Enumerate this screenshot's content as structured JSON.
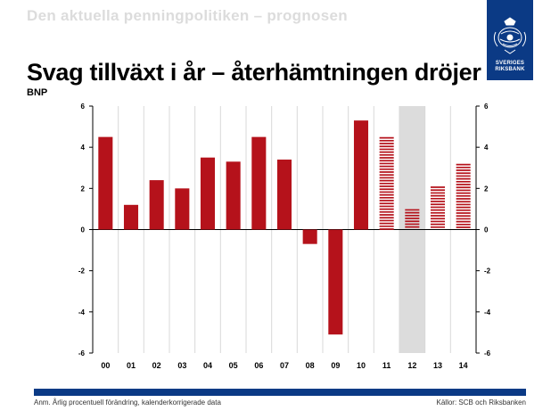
{
  "header": {
    "section_title": "Den aktuella penningpolitiken – prognosen",
    "main_title": "Svag tillväxt i år – återhämtningen dröjer",
    "subtitle": "BNP"
  },
  "logo": {
    "line1": "SVERIGES",
    "line2": "RIKSBANK",
    "color": "#0b3a85"
  },
  "footer": {
    "note": "Anm. Årlig procentuell förändring, kalenderkorrigerade data",
    "source": "Källor: SCB och Riksbanken"
  },
  "colors": {
    "bar": "#b5121b",
    "forecast_shade": "#dcdcdc",
    "accent": "#0b3a85"
  },
  "chart_data": {
    "type": "bar",
    "categories": [
      "00",
      "01",
      "02",
      "03",
      "04",
      "05",
      "06",
      "07",
      "08",
      "09",
      "10",
      "11",
      "12",
      "13",
      "14"
    ],
    "values": [
      4.5,
      1.2,
      2.4,
      2.0,
      3.5,
      3.3,
      4.5,
      3.4,
      -0.7,
      -5.1,
      5.3,
      4.5,
      1.0,
      2.1,
      3.2
    ],
    "forecast_from_index": 11,
    "shaded_category": "12",
    "ylim": [
      -6,
      6
    ],
    "yticks": [
      -6,
      -4,
      -2,
      0,
      2,
      4,
      6
    ],
    "grid": "vertical",
    "axes": "left-and-right"
  }
}
